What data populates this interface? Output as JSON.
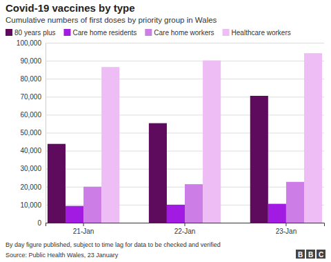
{
  "chart_data": {
    "type": "bar",
    "title": "Covid-19 vaccines by type",
    "subtitle": "Cumulative numbers of first doses by priority group in Wales",
    "categories": [
      "21-Jan",
      "22-Jan",
      "23-Jan"
    ],
    "series": [
      {
        "name": "80 years plus",
        "color": "#5e0b5e",
        "values": [
          43800,
          55300,
          70500
        ]
      },
      {
        "name": "Care home residents",
        "color": "#a11be3",
        "values": [
          9300,
          10000,
          10500
        ]
      },
      {
        "name": "Care home workers",
        "color": "#cc7ee6",
        "values": [
          20000,
          21400,
          22700
        ]
      },
      {
        "name": "Healthcare workers",
        "color": "#efbdf5",
        "values": [
          86500,
          90200,
          94200
        ]
      }
    ],
    "ylim": [
      0,
      100000
    ],
    "yticks": [
      0,
      {
        "value": 10000,
        "label": "10,000"
      },
      {
        "value": 20000,
        "label": "20,000"
      },
      {
        "value": 30000,
        "label": "30,000"
      },
      {
        "value": 40000,
        "label": "40,000"
      },
      {
        "value": 50000,
        "label": "50,000"
      },
      {
        "value": 60000,
        "label": "60,000"
      },
      {
        "value": 70000,
        "label": "70,000"
      },
      {
        "value": 80000,
        "label": "80,000"
      },
      {
        "value": 90000,
        "label": "90,000"
      },
      {
        "value": 100000,
        "label": "100,000"
      }
    ],
    "grid": true,
    "legend": "top-left",
    "note": "By day figure published, subject to time lag for data to be checked and verified",
    "source": "Source: Public Health Wales, 23 January",
    "logo": "BBC"
  }
}
